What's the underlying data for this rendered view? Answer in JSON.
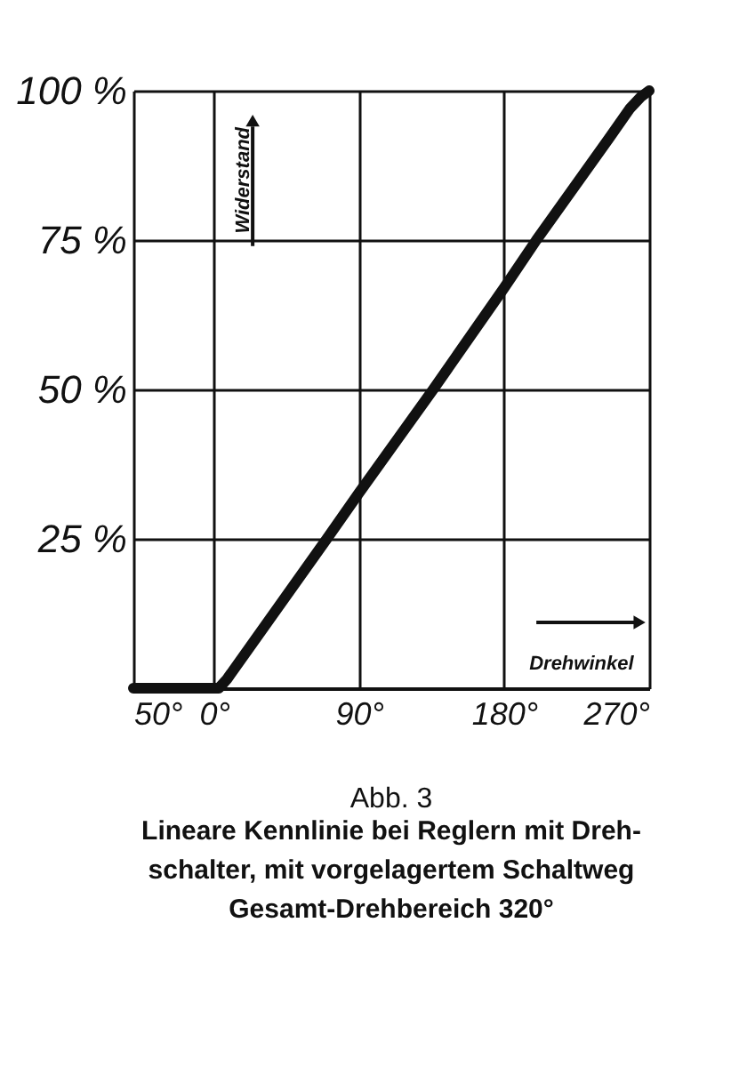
{
  "chart_data": {
    "type": "line",
    "title": "Abb. 3",
    "subtitle": "Lineare Kennlinie bei Reglern mit Dreh-\nschalter, mit vorgelagertem Schaltweg\nGesamt-Drehbereich 320°",
    "xlabel": "Drehwinkel",
    "ylabel": "Widerstand",
    "x": [
      -50,
      3,
      8,
      70,
      90,
      136,
      180,
      200,
      245,
      258,
      265,
      270
    ],
    "series": [
      {
        "color": "#111111",
        "values": [
          0,
          0,
          1.5,
          25,
          32.7,
          50,
          67,
          75,
          92,
          97,
          99,
          100
        ]
      }
    ],
    "xlim": [
      -50,
      270
    ],
    "ylim": [
      0,
      100
    ],
    "xticks": [
      {
        "value": -50,
        "label": "50°"
      },
      {
        "value": 0,
        "label": "0°"
      },
      {
        "value": 90,
        "label": "90°"
      },
      {
        "value": 180,
        "label": "180°"
      },
      {
        "value": 270,
        "label": "270°"
      }
    ],
    "yticks": [
      {
        "value": 25,
        "label": "25 %"
      },
      {
        "value": 50,
        "label": "50 %"
      },
      {
        "value": 75,
        "label": "75 %"
      },
      {
        "value": 100,
        "label": "100 %"
      }
    ],
    "grid": true,
    "marker": "none",
    "line_style": "solid"
  }
}
